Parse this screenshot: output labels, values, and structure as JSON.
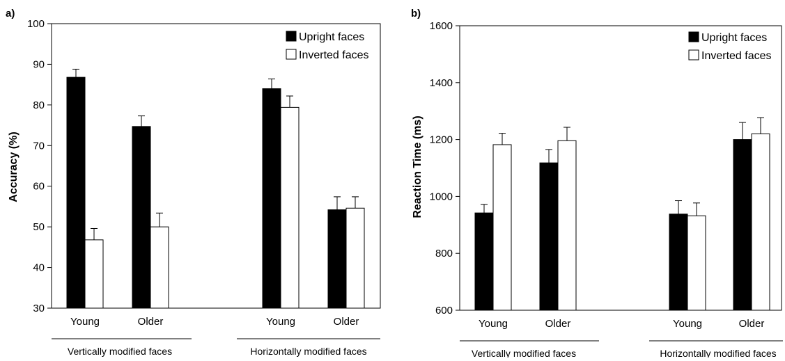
{
  "chart_data": [
    {
      "type": "bar",
      "panel_label": "a)",
      "ylabel": "Accuracy (%)",
      "ylim": [
        30,
        100
      ],
      "yticks": [
        "30",
        "40",
        "50",
        "60",
        "70",
        "80",
        "90",
        "100"
      ],
      "grid": false,
      "legend_position": "top-right",
      "categories": [
        "Young",
        "Older",
        "Young",
        "Older"
      ],
      "groups": [
        {
          "label": "Vertically modified faces",
          "categories": [
            0,
            1
          ]
        },
        {
          "label": "Horizontally modified faces",
          "categories": [
            2,
            3
          ]
        }
      ],
      "series": [
        {
          "name": "Upright faces",
          "color": "#000000",
          "values": [
            86.8,
            74.7,
            84.0,
            54.2
          ],
          "errors": [
            2.0,
            2.6,
            2.4,
            3.2
          ]
        },
        {
          "name": "Inverted faces",
          "color": "#ffffff",
          "values": [
            46.8,
            50.0,
            79.4,
            54.6
          ],
          "errors": [
            2.8,
            3.4,
            2.8,
            2.8
          ]
        }
      ]
    },
    {
      "type": "bar",
      "panel_label": "b)",
      "ylabel": "Reaction Time (ms)",
      "ylim": [
        600,
        1600
      ],
      "yticks": [
        "600",
        "800",
        "1000",
        "1200",
        "1400",
        "1600"
      ],
      "grid": false,
      "legend_position": "top-right",
      "categories": [
        "Young",
        "Older",
        "Young",
        "Older"
      ],
      "groups": [
        {
          "label": "Vertically modified faces",
          "categories": [
            0,
            1
          ]
        },
        {
          "label": "Horizontally modified faces",
          "categories": [
            2,
            3
          ]
        }
      ],
      "series": [
        {
          "name": "Upright faces",
          "color": "#000000",
          "values": [
            942,
            1118,
            938,
            1200
          ],
          "errors": [
            30,
            47,
            47,
            60
          ]
        },
        {
          "name": "Inverted faces",
          "color": "#ffffff",
          "values": [
            1182,
            1196,
            932,
            1220
          ],
          "errors": [
            40,
            47,
            45,
            57
          ]
        }
      ]
    }
  ]
}
